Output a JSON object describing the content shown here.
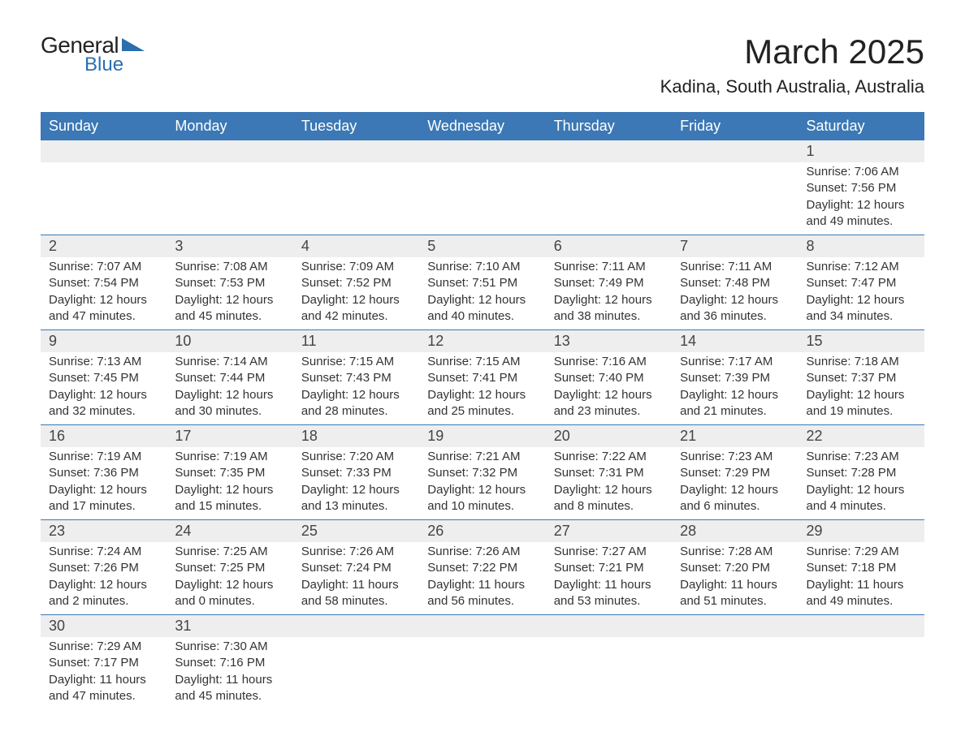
{
  "brand": {
    "name_part1": "General",
    "name_part2": "Blue",
    "tri_color": "#2b6fb0",
    "text_color_dark": "#222222"
  },
  "header": {
    "month_title": "March 2025",
    "location": "Kadina, South Australia, Australia"
  },
  "style": {
    "header_bg": "#3b78b5",
    "header_fg": "#ffffff",
    "daynum_bg": "#eeeeee",
    "row_border": "#3b78b5",
    "body_fontsize": 15,
    "header_fontsize": 18,
    "title_fontsize": 42,
    "location_fontsize": 22
  },
  "weekdays": [
    "Sunday",
    "Monday",
    "Tuesday",
    "Wednesday",
    "Thursday",
    "Friday",
    "Saturday"
  ],
  "weeks": [
    [
      null,
      null,
      null,
      null,
      null,
      null,
      {
        "n": "1",
        "sr": "Sunrise: 7:06 AM",
        "ss": "Sunset: 7:56 PM",
        "dl": "Daylight: 12 hours and 49 minutes."
      }
    ],
    [
      {
        "n": "2",
        "sr": "Sunrise: 7:07 AM",
        "ss": "Sunset: 7:54 PM",
        "dl": "Daylight: 12 hours and 47 minutes."
      },
      {
        "n": "3",
        "sr": "Sunrise: 7:08 AM",
        "ss": "Sunset: 7:53 PM",
        "dl": "Daylight: 12 hours and 45 minutes."
      },
      {
        "n": "4",
        "sr": "Sunrise: 7:09 AM",
        "ss": "Sunset: 7:52 PM",
        "dl": "Daylight: 12 hours and 42 minutes."
      },
      {
        "n": "5",
        "sr": "Sunrise: 7:10 AM",
        "ss": "Sunset: 7:51 PM",
        "dl": "Daylight: 12 hours and 40 minutes."
      },
      {
        "n": "6",
        "sr": "Sunrise: 7:11 AM",
        "ss": "Sunset: 7:49 PM",
        "dl": "Daylight: 12 hours and 38 minutes."
      },
      {
        "n": "7",
        "sr": "Sunrise: 7:11 AM",
        "ss": "Sunset: 7:48 PM",
        "dl": "Daylight: 12 hours and 36 minutes."
      },
      {
        "n": "8",
        "sr": "Sunrise: 7:12 AM",
        "ss": "Sunset: 7:47 PM",
        "dl": "Daylight: 12 hours and 34 minutes."
      }
    ],
    [
      {
        "n": "9",
        "sr": "Sunrise: 7:13 AM",
        "ss": "Sunset: 7:45 PM",
        "dl": "Daylight: 12 hours and 32 minutes."
      },
      {
        "n": "10",
        "sr": "Sunrise: 7:14 AM",
        "ss": "Sunset: 7:44 PM",
        "dl": "Daylight: 12 hours and 30 minutes."
      },
      {
        "n": "11",
        "sr": "Sunrise: 7:15 AM",
        "ss": "Sunset: 7:43 PM",
        "dl": "Daylight: 12 hours and 28 minutes."
      },
      {
        "n": "12",
        "sr": "Sunrise: 7:15 AM",
        "ss": "Sunset: 7:41 PM",
        "dl": "Daylight: 12 hours and 25 minutes."
      },
      {
        "n": "13",
        "sr": "Sunrise: 7:16 AM",
        "ss": "Sunset: 7:40 PM",
        "dl": "Daylight: 12 hours and 23 minutes."
      },
      {
        "n": "14",
        "sr": "Sunrise: 7:17 AM",
        "ss": "Sunset: 7:39 PM",
        "dl": "Daylight: 12 hours and 21 minutes."
      },
      {
        "n": "15",
        "sr": "Sunrise: 7:18 AM",
        "ss": "Sunset: 7:37 PM",
        "dl": "Daylight: 12 hours and 19 minutes."
      }
    ],
    [
      {
        "n": "16",
        "sr": "Sunrise: 7:19 AM",
        "ss": "Sunset: 7:36 PM",
        "dl": "Daylight: 12 hours and 17 minutes."
      },
      {
        "n": "17",
        "sr": "Sunrise: 7:19 AM",
        "ss": "Sunset: 7:35 PM",
        "dl": "Daylight: 12 hours and 15 minutes."
      },
      {
        "n": "18",
        "sr": "Sunrise: 7:20 AM",
        "ss": "Sunset: 7:33 PM",
        "dl": "Daylight: 12 hours and 13 minutes."
      },
      {
        "n": "19",
        "sr": "Sunrise: 7:21 AM",
        "ss": "Sunset: 7:32 PM",
        "dl": "Daylight: 12 hours and 10 minutes."
      },
      {
        "n": "20",
        "sr": "Sunrise: 7:22 AM",
        "ss": "Sunset: 7:31 PM",
        "dl": "Daylight: 12 hours and 8 minutes."
      },
      {
        "n": "21",
        "sr": "Sunrise: 7:23 AM",
        "ss": "Sunset: 7:29 PM",
        "dl": "Daylight: 12 hours and 6 minutes."
      },
      {
        "n": "22",
        "sr": "Sunrise: 7:23 AM",
        "ss": "Sunset: 7:28 PM",
        "dl": "Daylight: 12 hours and 4 minutes."
      }
    ],
    [
      {
        "n": "23",
        "sr": "Sunrise: 7:24 AM",
        "ss": "Sunset: 7:26 PM",
        "dl": "Daylight: 12 hours and 2 minutes."
      },
      {
        "n": "24",
        "sr": "Sunrise: 7:25 AM",
        "ss": "Sunset: 7:25 PM",
        "dl": "Daylight: 12 hours and 0 minutes."
      },
      {
        "n": "25",
        "sr": "Sunrise: 7:26 AM",
        "ss": "Sunset: 7:24 PM",
        "dl": "Daylight: 11 hours and 58 minutes."
      },
      {
        "n": "26",
        "sr": "Sunrise: 7:26 AM",
        "ss": "Sunset: 7:22 PM",
        "dl": "Daylight: 11 hours and 56 minutes."
      },
      {
        "n": "27",
        "sr": "Sunrise: 7:27 AM",
        "ss": "Sunset: 7:21 PM",
        "dl": "Daylight: 11 hours and 53 minutes."
      },
      {
        "n": "28",
        "sr": "Sunrise: 7:28 AM",
        "ss": "Sunset: 7:20 PM",
        "dl": "Daylight: 11 hours and 51 minutes."
      },
      {
        "n": "29",
        "sr": "Sunrise: 7:29 AM",
        "ss": "Sunset: 7:18 PM",
        "dl": "Daylight: 11 hours and 49 minutes."
      }
    ],
    [
      {
        "n": "30",
        "sr": "Sunrise: 7:29 AM",
        "ss": "Sunset: 7:17 PM",
        "dl": "Daylight: 11 hours and 47 minutes."
      },
      {
        "n": "31",
        "sr": "Sunrise: 7:30 AM",
        "ss": "Sunset: 7:16 PM",
        "dl": "Daylight: 11 hours and 45 minutes."
      },
      null,
      null,
      null,
      null,
      null
    ]
  ]
}
